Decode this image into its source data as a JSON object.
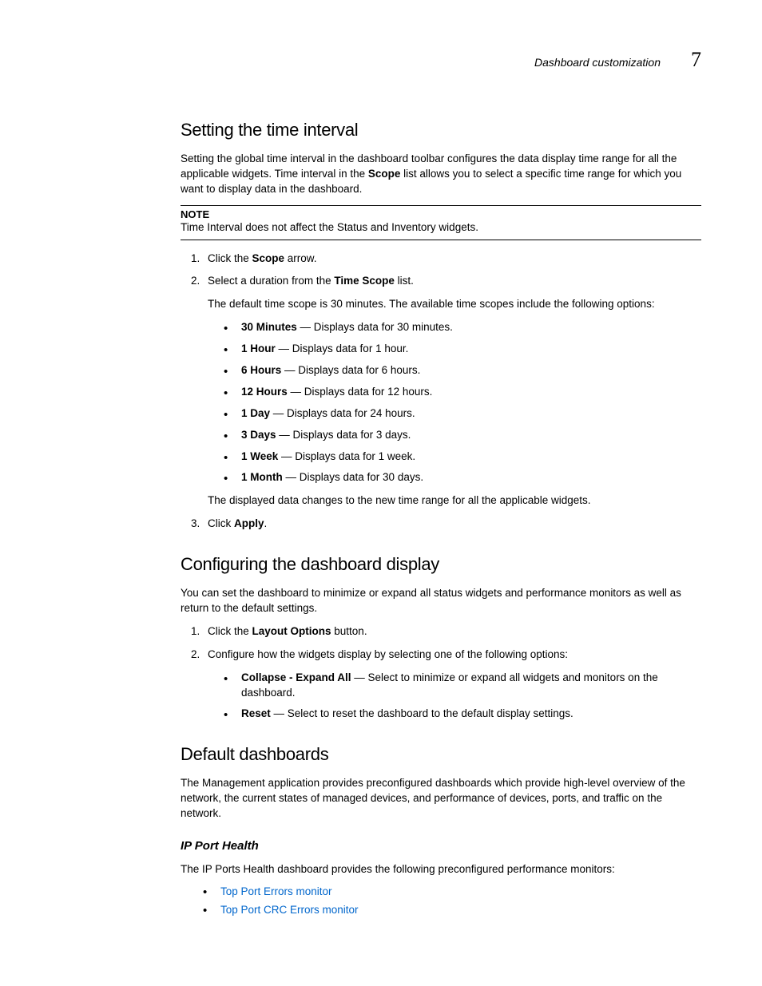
{
  "header": {
    "title": "Dashboard customization",
    "chapter": "7"
  },
  "section1": {
    "heading": "Setting the time interval",
    "intro_pre": "Setting the global time interval in the dashboard toolbar configures the data display time range for all the applicable widgets. Time interval in the ",
    "intro_bold": "Scope",
    "intro_post": " list allows you to select a specific time range for which you want to display data in the dashboard.",
    "note_label": "NOTE",
    "note_text": "Time Interval does not affect the Status and Inventory widgets.",
    "step1_pre": "Click the ",
    "step1_bold": "Scope",
    "step1_post": " arrow.",
    "step2_pre": "Select a duration from the ",
    "step2_bold": "Time Scope",
    "step2_post": " list.",
    "step2_sub": "The default time scope is 30 minutes. The available time scopes include the following options:",
    "scopes": [
      {
        "label": "30 Minutes",
        "desc": " — Displays data for 30 minutes."
      },
      {
        "label": "1 Hour",
        "desc": " — Displays data for 1 hour."
      },
      {
        "label": "6 Hours",
        "desc": " — Displays data for 6 hours."
      },
      {
        "label": "12 Hours",
        "desc": " — Displays data for 12 hours."
      },
      {
        "label": "1 Day",
        "desc": " — Displays data for 24 hours."
      },
      {
        "label": "3 Days",
        "desc": " — Displays data for 3 days."
      },
      {
        "label": "1 Week",
        "desc": " — Displays data for 1 week."
      },
      {
        "label": "1 Month",
        "desc": " — Displays data for 30 days."
      }
    ],
    "step2_after": "The displayed data changes to the new time range for all the applicable widgets.",
    "step3_pre": "Click ",
    "step3_bold": "Apply",
    "step3_post": "."
  },
  "section2": {
    "heading": "Configuring the dashboard display",
    "intro": "You can set the dashboard to minimize or expand all status widgets and performance monitors as well as return to the default settings.",
    "step1_pre": "Click the ",
    "step1_bold": "Layout Options",
    "step1_post": " button.",
    "step2": "Configure how the widgets display by selecting one of the following options:",
    "options": [
      {
        "label": "Collapse - Expand All",
        "desc": " — Select to minimize or expand all widgets and monitors on the dashboard."
      },
      {
        "label": "Reset",
        "desc": " — Select to reset the dashboard to the default display settings."
      }
    ]
  },
  "section3": {
    "heading": "Default dashboards",
    "intro": "The Management application provides preconfigured dashboards which provide high-level overview of the network, the current states of managed devices, and performance of devices, ports, and traffic on the network.",
    "sub_heading": "IP Port Health",
    "sub_intro": "The IP Ports Health dashboard provides the following preconfigured performance monitors:",
    "links": [
      "Top Port Errors monitor",
      "Top Port CRC Errors monitor"
    ]
  }
}
